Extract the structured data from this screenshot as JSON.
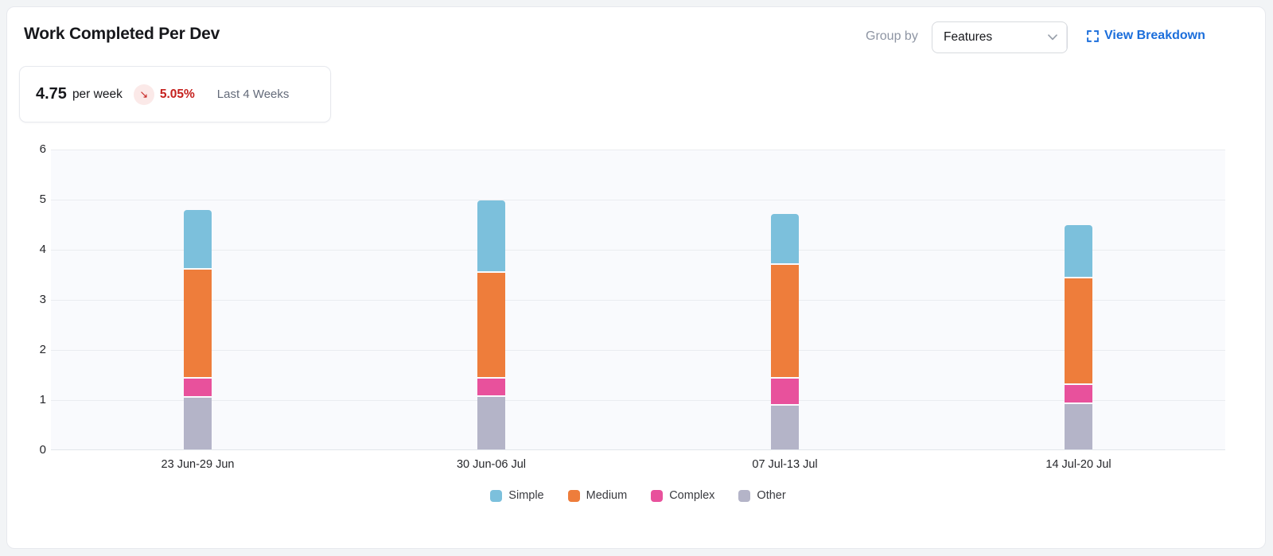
{
  "header": {
    "title": "Work Completed Per Dev",
    "group_by": {
      "label": "Group by",
      "value": "Features"
    },
    "view_breakdown": {
      "label": "View Breakdown"
    }
  },
  "summary": {
    "value": "4.75",
    "unit": "per week",
    "trend": {
      "direction": "down",
      "pct": "5.05%",
      "arrow_glyph": "↘"
    },
    "period": "Last 4 Weeks"
  },
  "colors": {
    "link_blue": "#1b6edb",
    "trend_red": "#c5211e",
    "trend_circle_bg": "#fbe9e8",
    "plot_bg": "#f9fafd",
    "gridline": "#eaecf0",
    "card_border": "#e7e9ee"
  },
  "chart_data": {
    "type": "bar",
    "stacked": true,
    "title": "Work Completed Per Dev",
    "categories": [
      "23 Jun-29 Jun",
      "30 Jun-06 Jul",
      "07 Jul-13 Jul",
      "14 Jul-20 Jul"
    ],
    "series": [
      {
        "name": "Simple",
        "color": "#7cc0dc",
        "values": [
          1.2,
          1.45,
          1.02,
          1.06
        ]
      },
      {
        "name": "Medium",
        "color": "#ee7d3b",
        "values": [
          2.17,
          2.1,
          2.26,
          2.13
        ]
      },
      {
        "name": "Complex",
        "color": "#e8519c",
        "values": [
          0.38,
          0.37,
          0.55,
          0.37
        ]
      },
      {
        "name": "Other",
        "color": "#b4b4c8",
        "values": [
          1.03,
          1.05,
          0.87,
          0.91
        ]
      }
    ],
    "stack_order_bottom_to_top": [
      "Other",
      "Complex",
      "Medium",
      "Simple"
    ],
    "totals": [
      4.78,
      4.97,
      4.7,
      4.47
    ],
    "xlabel": "",
    "ylabel": "",
    "ylim": [
      0,
      6
    ],
    "yticks": [
      0,
      1,
      2,
      3,
      4,
      5,
      6
    ],
    "grid": true,
    "legend_position": "bottom"
  }
}
